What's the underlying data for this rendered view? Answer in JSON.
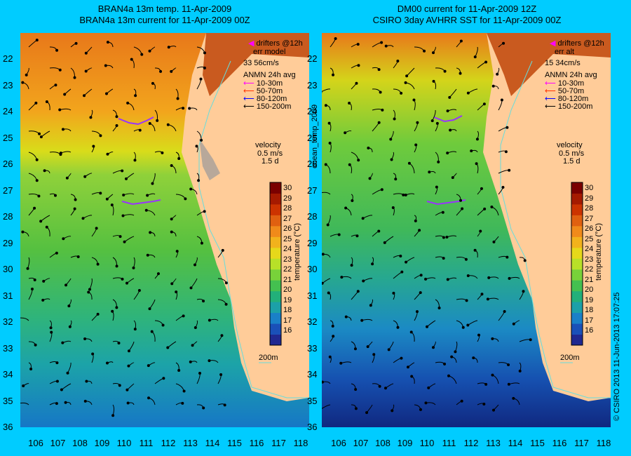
{
  "left_panel": {
    "title_line1": "BRAN4a 13m temp. 11-Apr-2009",
    "title_line2": "BRAN4a 13m current for 11-Apr-2009 00Z",
    "legend_drifters": "drifters @12h",
    "legend_err_label": "err model",
    "legend_err_value": "33 56cm/s",
    "velocity_label": "velocity",
    "velocity_value": "0.5 m/s",
    "velocity_days": "1.5 d",
    "isobath_label": "200m"
  },
  "right_panel": {
    "title_line1": "DM00 current for 11-Apr-2009 12Z",
    "title_line2": "CSIRO 3day AVHRR SST for 11-Apr-2009 00Z",
    "legend_drifters": "drifters @12h",
    "legend_err_label": "err alt",
    "legend_err_value": "15 34cm/s",
    "velocity_label": "velocity",
    "velocity_value": "0.5 m/s",
    "velocity_days": "1.5 d",
    "isobath_label": "200m"
  },
  "anmn": {
    "title": "ANMN 24h avg",
    "depths": [
      {
        "label": "10-30m",
        "color": "#ff00ff"
      },
      {
        "label": "50-70m",
        "color": "#ff3300"
      },
      {
        "label": "80-120m",
        "color": "#0000ff"
      },
      {
        "label": "150-200m",
        "color": "#000000"
      }
    ]
  },
  "colorbar": {
    "label": "temperature (°C)",
    "ticks": [
      "30",
      "29",
      "28",
      "27",
      "26",
      "25",
      "24",
      "23",
      "22",
      "21",
      "20",
      "19",
      "18",
      "17",
      "16"
    ]
  },
  "axes": {
    "lat_labels": [
      "22",
      "23",
      "24",
      "25",
      "26",
      "27",
      "28",
      "29",
      "30",
      "31",
      "32",
      "33",
      "34",
      "35",
      "36"
    ],
    "lon_labels": [
      "106",
      "107",
      "108",
      "109",
      "110",
      "111",
      "112",
      "113",
      "114",
      "115",
      "116",
      "117",
      "118"
    ]
  },
  "side_text": "ocean_temp_2009",
  "credit": "© CSIRO 2013   11-Jun-2013 17:07:25",
  "colors": {
    "background": "#00ccff",
    "land": "#ffcc99",
    "isobath": "#66dddd",
    "drifter": "#9933ff"
  }
}
